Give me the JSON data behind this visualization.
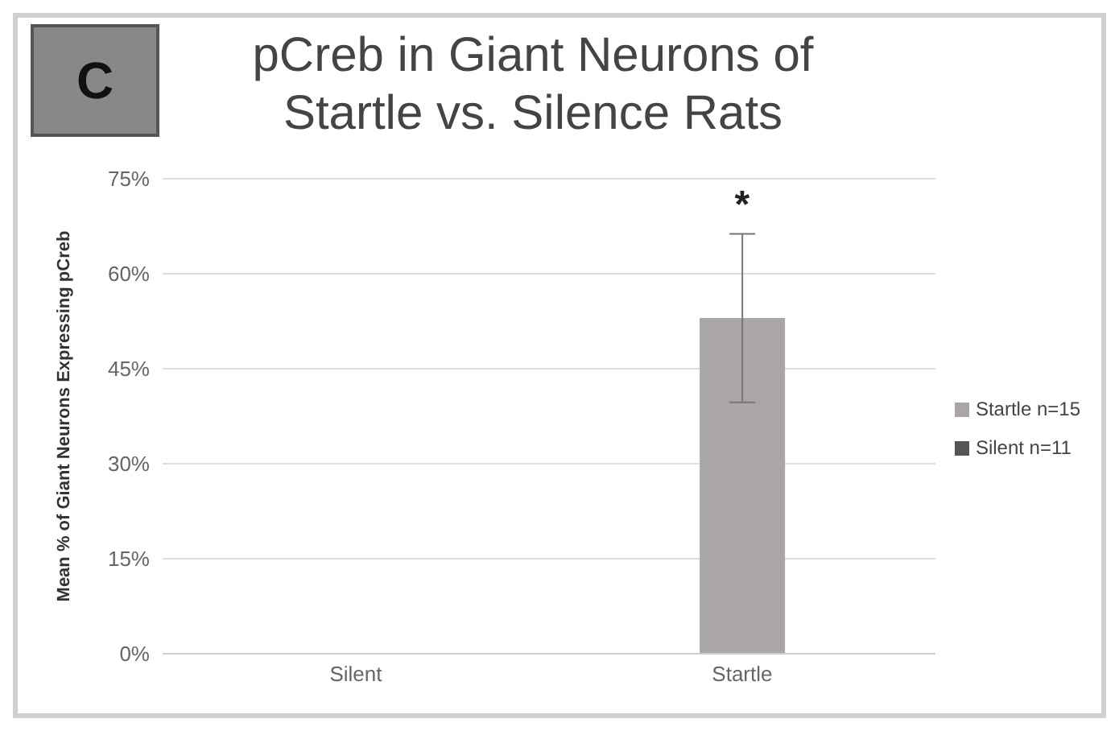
{
  "chart_data": {
    "type": "bar",
    "title": "pCreb in Giant Neurons of Startle vs. Silence Rats",
    "ylabel": "Mean % of Giant Neurons Expressing pCreb",
    "categories": [
      "Silent",
      "Startle"
    ],
    "series": [
      {
        "name": "Startle n=15",
        "color": "#aaa6a5",
        "values": [
          null,
          53
        ],
        "errors": [
          null,
          13.3
        ]
      },
      {
        "name": "Silent n=11",
        "color": "#555555",
        "values": [
          null,
          null
        ]
      }
    ],
    "stacked": true,
    "ylim": [
      0,
      75
    ],
    "yticks": [
      {
        "value": 0,
        "label": "0%"
      },
      {
        "value": 15,
        "label": "15%"
      },
      {
        "value": 30,
        "label": "30%"
      },
      {
        "value": 45,
        "label": "45%"
      },
      {
        "value": 60,
        "label": "60%"
      },
      {
        "value": 75,
        "label": "75%"
      }
    ],
    "grid": "y",
    "legend": "right",
    "annotations": [
      "*",
      "C"
    ]
  }
}
